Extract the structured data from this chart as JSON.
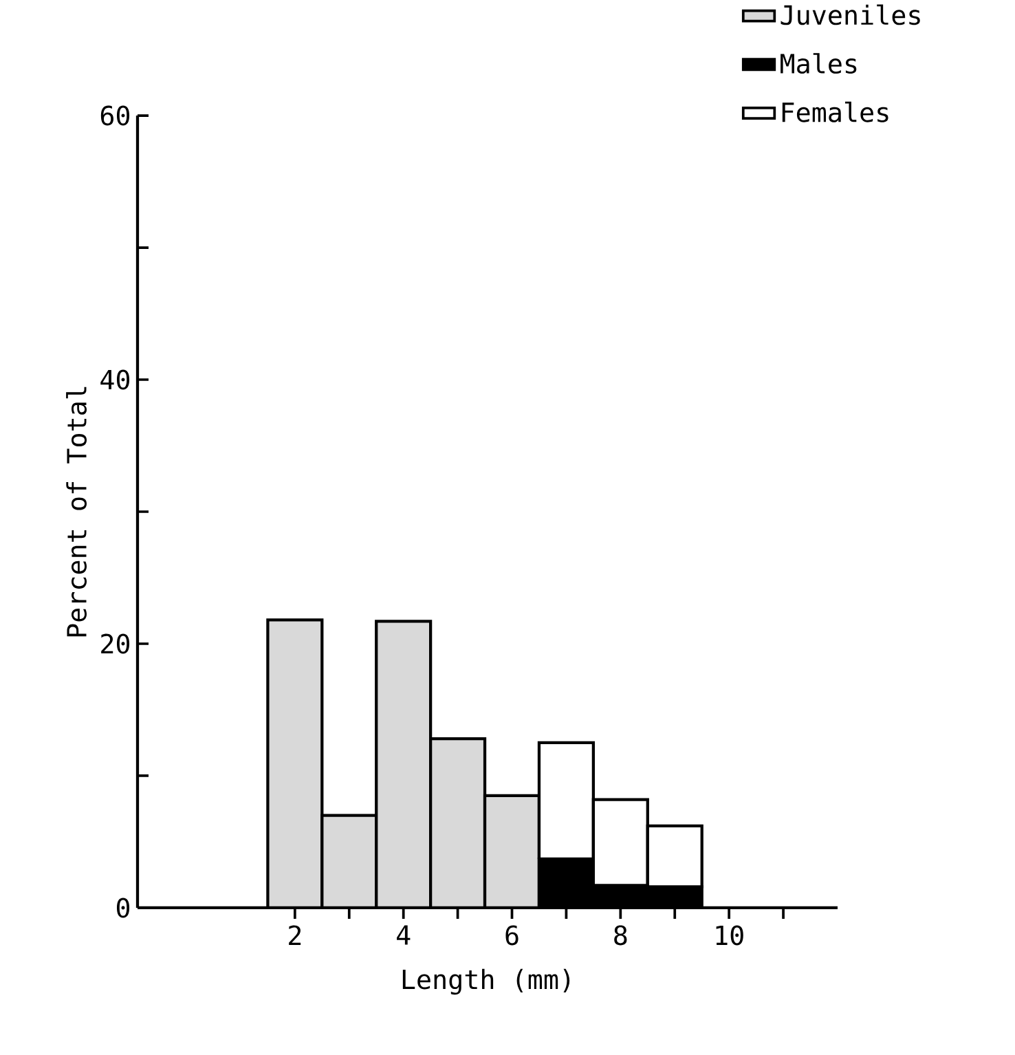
{
  "chart_data": {
    "type": "bar",
    "xlabel": "Length (mm)",
    "ylabel": "Percent of Total",
    "x": [
      2,
      3,
      4,
      5,
      6,
      7,
      8,
      9
    ],
    "stacked": true,
    "series": [
      {
        "name": "Juveniles",
        "color": "#d9d9d9",
        "values": [
          21.8,
          7.0,
          21.7,
          12.8,
          8.5,
          0,
          0,
          0
        ]
      },
      {
        "name": "Males",
        "color": "#000000",
        "values": [
          0,
          0,
          0,
          0,
          0,
          3.7,
          1.7,
          1.6
        ]
      },
      {
        "name": "Females",
        "color": "#ffffff",
        "values": [
          0,
          0,
          0,
          0,
          0,
          8.8,
          6.5,
          4.6
        ]
      }
    ],
    "xlim": [
      -0.9,
      12
    ],
    "ylim": [
      0,
      60
    ],
    "xticks": [
      2,
      {
        "value": 3,
        "label": null
      },
      4,
      {
        "value": 5,
        "label": null
      },
      6,
      {
        "value": 7,
        "label": null
      },
      8,
      {
        "value": 9,
        "label": null
      },
      10,
      {
        "value": 11,
        "label": null
      }
    ],
    "yticks": [
      0,
      {
        "value": 10,
        "label": null
      },
      20,
      {
        "value": 30,
        "label": null
      },
      40,
      {
        "value": 50,
        "label": null
      },
      60
    ],
    "legend": "top right"
  }
}
